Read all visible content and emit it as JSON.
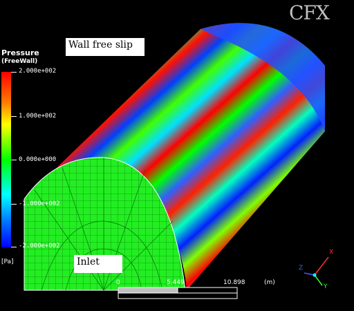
{
  "legend": {
    "title": "Pressure",
    "subtitle": "(FreeWall)",
    "ticks": [
      "2.000e+002",
      "1.000e+002",
      "0.000e+000",
      "-1.000e+002",
      "-2.000e+002"
    ],
    "unit": "[Pa]"
  },
  "labels": {
    "wall": "Wall free slip",
    "inlet": "Inlet"
  },
  "logo": "CFX",
  "scale": {
    "v0": "0",
    "v1": "5.449",
    "v2": "10.898",
    "unit": "(m)"
  },
  "axes": {
    "x": "X",
    "y": "Y",
    "z": "Z"
  },
  "colors": {
    "background": "#000000",
    "high": "#ff0000",
    "mid": "#00ff00",
    "low": "#0000ff"
  }
}
